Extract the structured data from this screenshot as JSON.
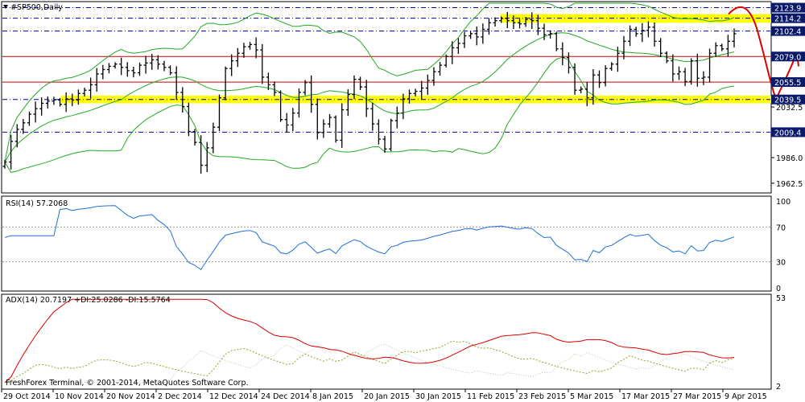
{
  "chart_data": [
    {
      "panel": "price",
      "type": "bar",
      "title": "#SP500,Daily",
      "bar_style": "OHLC",
      "ylim": [
        1955,
        2128
      ],
      "y_ticks": [
        2123.9,
        2114.2,
        2102.4,
        2079.0,
        2055.5,
        2039.5,
        2032.5,
        2009.4,
        1986.0,
        1962.5
      ],
      "highlighted_levels": [
        2123.9,
        2114.2,
        2102.4,
        2079.0,
        2055.5,
        2039.5,
        2009.4
      ],
      "zones": [
        {
          "name": "resistance",
          "from": 2110,
          "to": 2118
        },
        {
          "name": "support",
          "from": 2036,
          "to": 2043
        }
      ],
      "horizontal_lines": [
        {
          "value": 2123.9,
          "style": "dash-dot",
          "color": "#0000aa"
        },
        {
          "value": 2114.2,
          "style": "dash-dot",
          "color": "#0000aa"
        },
        {
          "value": 2102.4,
          "style": "dash-dot",
          "color": "#0000aa"
        },
        {
          "value": 2079.0,
          "style": "solid",
          "color": "#cc0000"
        },
        {
          "value": 2055.5,
          "style": "solid",
          "color": "#cc0000"
        },
        {
          "value": 2039.5,
          "style": "dash-dot",
          "color": "#0000aa"
        },
        {
          "value": 2009.4,
          "style": "dash-dot",
          "color": "#0000aa"
        }
      ],
      "bollinger": {
        "color": "#22aa22",
        "series": [
          "upper",
          "middle",
          "lower"
        ]
      },
      "forecast_arrow": {
        "color": "#dd0000",
        "points": [
          [
            2118,
            0
          ],
          [
            2124,
            1
          ],
          [
            2105,
            2
          ],
          [
            2040,
            3
          ],
          [
            2080,
            4
          ]
        ]
      },
      "x_labels": [
        "29 Oct 2014",
        "10 Nov 2014",
        "20 Nov 2014",
        "2 Dec 2014",
        "12 Dec 2014",
        "24 Dec 2014",
        "8 Jan 2015",
        "20 Jan 2015",
        "30 Jan 2015",
        "11 Feb 2015",
        "23 Feb 2015",
        "5 Mar 2015",
        "17 Mar 2015",
        "27 Mar 2015",
        "9 Apr 2015"
      ],
      "closes": [
        1982,
        2001,
        2012,
        2018,
        2026,
        2031,
        2036,
        2038,
        2039,
        2035,
        2040,
        2039,
        2045,
        2048,
        2053,
        2063,
        2067,
        2070,
        2072,
        2069,
        2066,
        2064,
        2071,
        2073,
        2076,
        2072,
        2069,
        2064,
        2046,
        2033,
        2010,
        2000,
        1979,
        1995,
        2014,
        2041,
        2068,
        2075,
        2082,
        2088,
        2090,
        2085,
        2060,
        2053,
        2046,
        2021,
        2016,
        2027,
        2046,
        2055,
        2035,
        2009,
        2017,
        2023,
        2002,
        2030,
        2044,
        2058,
        2051,
        2031,
        2017,
        2003,
        1994,
        2020,
        2027,
        2040,
        2045,
        2047,
        2050,
        2057,
        2065,
        2071,
        2079,
        2087,
        2091,
        2098,
        2100,
        2097,
        2104,
        2110,
        2112,
        2114,
        2112,
        2110,
        2109,
        2113,
        2112,
        2105,
        2099,
        2100,
        2086,
        2078,
        2069,
        2048,
        2049,
        2041,
        2062,
        2055,
        2068,
        2072,
        2082,
        2093,
        2104,
        2100,
        2103,
        2106,
        2093,
        2082,
        2075,
        2063,
        2065,
        2056,
        2075,
        2059,
        2060,
        2082,
        2089,
        2086,
        2093,
        2100
      ]
    },
    {
      "panel": "rsi",
      "type": "line",
      "title": "RSI(14) 57.2068",
      "ylim": [
        0,
        100
      ],
      "y_ticks": [
        100,
        70,
        30,
        0
      ],
      "levels": [
        70,
        30
      ],
      "series": [
        {
          "name": "RSI(14)",
          "color": "#1e6fd9"
        }
      ]
    },
    {
      "panel": "adx",
      "type": "line",
      "title": "ADX(14) 20.7197 +DI:25.0286 -DI:15.5764",
      "ylim": [
        2,
        53
      ],
      "y_ticks": [
        53,
        2
      ],
      "series": [
        {
          "name": "ADX(14)",
          "color": "#dd0000"
        },
        {
          "name": "+DI",
          "color": "#88aa22"
        },
        {
          "name": "-DI",
          "color": "#b8c8a0"
        }
      ]
    }
  ],
  "footer": {
    "copyright": "FreshForex Terminal, © 2001-2014, MetaQuotes Software Corp."
  },
  "colors": {
    "support_zone": "#ffff00",
    "price_bars": "#000000",
    "bands": "#22aa22",
    "rsi": "#1e6fd9",
    "adx": "#dd0000",
    "plus_di": "#88aa22",
    "minus_di": "#b8c8a0",
    "arrow": "#dd0000"
  }
}
